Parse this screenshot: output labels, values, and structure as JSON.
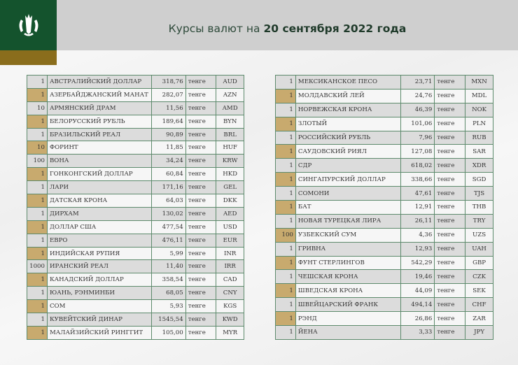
{
  "header": {
    "title_prefix": "Курсы валют на ",
    "title_date": "20 сентября 2022 года"
  },
  "colors": {
    "brand_green": "#14532d",
    "gold": "#8a6d1c",
    "row_accent": "#c8aa6e"
  },
  "left_table": [
    [
      "1",
      "АВСТРАЛИЙСКИЙ ДОЛЛАР",
      "318,76",
      "тенге",
      "AUD"
    ],
    [
      "1",
      "АЗЕРБАЙДЖАНСКИЙ МАНАТ",
      "282,07",
      "тенге",
      "AZN"
    ],
    [
      "10",
      "АРМЯНСКИЙ  ДРАМ",
      "11,56",
      "тенге",
      "AMD"
    ],
    [
      "1",
      "БЕЛОРУССКИЙ РУБЛЬ",
      "189,64",
      "тенге",
      "BYN"
    ],
    [
      "1",
      "БРАЗИЛЬСКИЙ РЕАЛ",
      "90,89",
      "тенге",
      "BRL"
    ],
    [
      "10",
      "ФОРИНТ",
      "11,85",
      "тенге",
      "HUF"
    ],
    [
      "100",
      "ВОНА",
      "34,24",
      "тенге",
      "KRW"
    ],
    [
      "1",
      "ГОНКОНГСКИЙ ДОЛЛАР",
      "60,84",
      "тенге",
      "HKD"
    ],
    [
      "1",
      "ЛАРИ",
      "171,16",
      "тенге",
      "GEL"
    ],
    [
      "1",
      "ДАТСКАЯ КРОНА",
      "64,03",
      "тенге",
      "DKK"
    ],
    [
      "1",
      "ДИРХАМ",
      "130,02",
      "тенге",
      "AED"
    ],
    [
      "1",
      "ДОЛЛАР США",
      "477,54",
      "тенге",
      "USD"
    ],
    [
      "1",
      "ЕВРО",
      "476,11",
      "тенге",
      "EUR"
    ],
    [
      "1",
      "ИНДИЙСКАЯ РУПИЯ",
      "5,99",
      "тенге",
      "INR"
    ],
    [
      "1000",
      "ИРАНСКИЙ РЕАЛ",
      "11,40",
      "тенге",
      "IRR"
    ],
    [
      "1",
      "КАНАДСКИЙ ДОЛЛАР",
      "358,54",
      "тенге",
      "CAD"
    ],
    [
      "1",
      "ЮАНЬ, РЭНМИНБИ",
      "68,05",
      "тенге",
      "CNY"
    ],
    [
      "1",
      "СОМ",
      "5,93",
      "тенге",
      "KGS"
    ],
    [
      "1",
      "КУВЕЙТСКИЙ ДИНАР",
      "1545,54",
      "тенге",
      "KWD"
    ],
    [
      "1",
      "МАЛАЙЗИЙСКИЙ РИНГГИТ",
      "105,00",
      "тенге",
      "MYR"
    ]
  ],
  "right_table": [
    [
      "1",
      "МЕКСИКАНСКОЕ ПЕСО",
      "23,71",
      "тенге",
      "MXN"
    ],
    [
      "1",
      "МОЛДАВСКИЙ ЛЕЙ",
      "24,76",
      "тенге",
      "MDL"
    ],
    [
      "1",
      "НОРВЕЖСКАЯ КРОНА",
      "46,39",
      "тенге",
      "NOK"
    ],
    [
      "1",
      "ЗЛОТЫЙ",
      "101,06",
      "тенге",
      "PLN"
    ],
    [
      "1",
      "РОССИЙСКИЙ РУБЛЬ",
      "7,96",
      "тенге",
      "RUB"
    ],
    [
      "1",
      "САУДОВСКИЙ РИЯЛ",
      "127,08",
      "тенге",
      "SAR"
    ],
    [
      "1",
      "СДР",
      "618,02",
      "тенге",
      "XDR"
    ],
    [
      "1",
      "СИНГАПУРСКИЙ ДОЛЛАР",
      "338,66",
      "тенге",
      "SGD"
    ],
    [
      "1",
      "СОМОНИ",
      "47,61",
      "тенге",
      "TJS"
    ],
    [
      "1",
      "БАТ",
      "12,91",
      "тенге",
      "THB"
    ],
    [
      "1",
      "НОВАЯ ТУРЕЦКАЯ ЛИРА",
      "26,11",
      "тенге",
      "TRY"
    ],
    [
      "100",
      "УЗБЕКСКИЙ СУМ",
      "4,36",
      "тенге",
      "UZS"
    ],
    [
      "1",
      "ГРИВНА",
      "12,93",
      "тенге",
      "UAH"
    ],
    [
      "1",
      "ФУНТ СТЕРЛИНГОВ",
      "542,29",
      "тенге",
      "GBP"
    ],
    [
      "1",
      "ЧЕШСКАЯ КРОНА",
      "19,46",
      "тенге",
      "CZK"
    ],
    [
      "1",
      "ШВЕДСКАЯ КРОНА",
      "44,09",
      "тенге",
      "SEK"
    ],
    [
      "1",
      "ШВЕЙЦАРСКИЙ ФРАНК",
      "494,14",
      "тенге",
      "CHF"
    ],
    [
      "1",
      "РЭНД",
      "26,86",
      "тенге",
      "ZAR"
    ],
    [
      "1",
      "ЙЕНА",
      "3,33",
      "тенге",
      "JPY"
    ]
  ]
}
